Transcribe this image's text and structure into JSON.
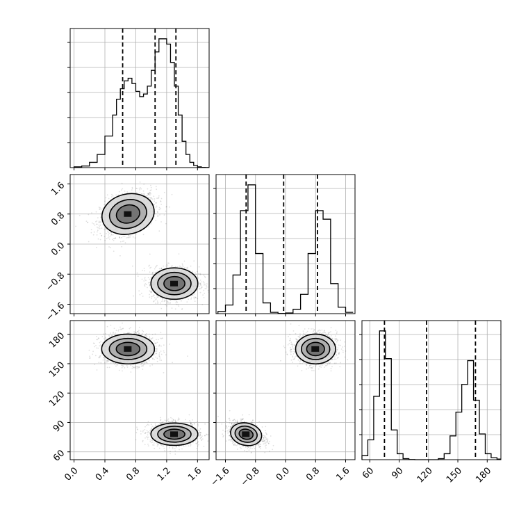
{
  "chart_data": {
    "type": "corner",
    "parameters": [
      {
        "range": [
          -0.05,
          1.75
        ],
        "ticks": [
          "0.0",
          "0.4",
          "0.8",
          "1.2",
          "1.6"
        ],
        "tick_values": [
          0.0,
          0.4,
          0.8,
          1.2,
          1.6
        ]
      },
      {
        "range": [
          -1.85,
          1.85
        ],
        "ticks": [
          "−1.6",
          "−0.8",
          "0.0",
          "0.8",
          "1.6"
        ],
        "tick_values": [
          -1.6,
          -0.8,
          0.0,
          0.8,
          1.6
        ]
      },
      {
        "range": [
          52,
          194
        ],
        "ticks": [
          "60",
          "90",
          "120",
          "150",
          "180"
        ],
        "tick_values": [
          60,
          90,
          120,
          150,
          180
        ]
      }
    ],
    "diagonal": [
      {
        "bins_x": [
          0.0,
          0.1,
          0.2,
          0.3,
          0.4,
          0.5,
          0.55,
          0.6,
          0.65,
          0.7,
          0.75,
          0.8,
          0.85,
          0.9,
          0.95,
          1.0,
          1.05,
          1.1,
          1.15,
          1.2,
          1.25,
          1.3,
          1.35,
          1.4,
          1.45,
          1.5,
          1.55,
          1.6,
          1.65,
          1.7,
          1.75
        ],
        "counts": [
          0.3,
          0.6,
          2,
          5,
          12,
          20,
          26,
          30,
          33,
          34,
          32,
          29,
          27,
          28,
          31,
          37,
          44,
          49,
          49,
          47,
          40,
          31,
          20,
          10,
          5,
          2,
          0.8,
          0.3,
          0.1,
          0.05
        ],
        "quantiles": [
          0.63,
          1.05,
          1.32
        ]
      },
      {
        "bins_x": [
          -1.8,
          -1.6,
          -1.4,
          -1.2,
          -1.0,
          -0.8,
          -0.6,
          -0.4,
          -0.2,
          0.0,
          0.2,
          0.4,
          0.6,
          0.8,
          1.0,
          1.2,
          1.4,
          1.6,
          1.8
        ],
        "counts": [
          1,
          4,
          18,
          48,
          60,
          28,
          5,
          0.6,
          0.1,
          0.3,
          2,
          9,
          28,
          48,
          44,
          14,
          3,
          0.6
        ],
        "quantiles": [
          -1.05,
          -0.05,
          0.85
        ]
      },
      {
        "bins_x": [
          52,
          58,
          64,
          70,
          76,
          82,
          88,
          94,
          100,
          106,
          112,
          118,
          124,
          130,
          136,
          142,
          148,
          154,
          160,
          166,
          172,
          178,
          184,
          190,
          194
        ],
        "counts": [
          2,
          10,
          32,
          65,
          51,
          15,
          3,
          0.5,
          0.1,
          0,
          0,
          0,
          0,
          0.5,
          3,
          12,
          24,
          38,
          50,
          30,
          13,
          3,
          1,
          0.3
        ],
        "quantiles": [
          75,
          118,
          168
        ]
      }
    ],
    "clusters": [
      {
        "center": [
          0.7,
          0.8,
          165
        ],
        "spread": [
          0.18,
          0.28,
          8
        ]
      },
      {
        "center": [
          1.3,
          -1.05,
          78
        ],
        "spread": [
          0.16,
          0.22,
          6
        ]
      }
    ]
  }
}
